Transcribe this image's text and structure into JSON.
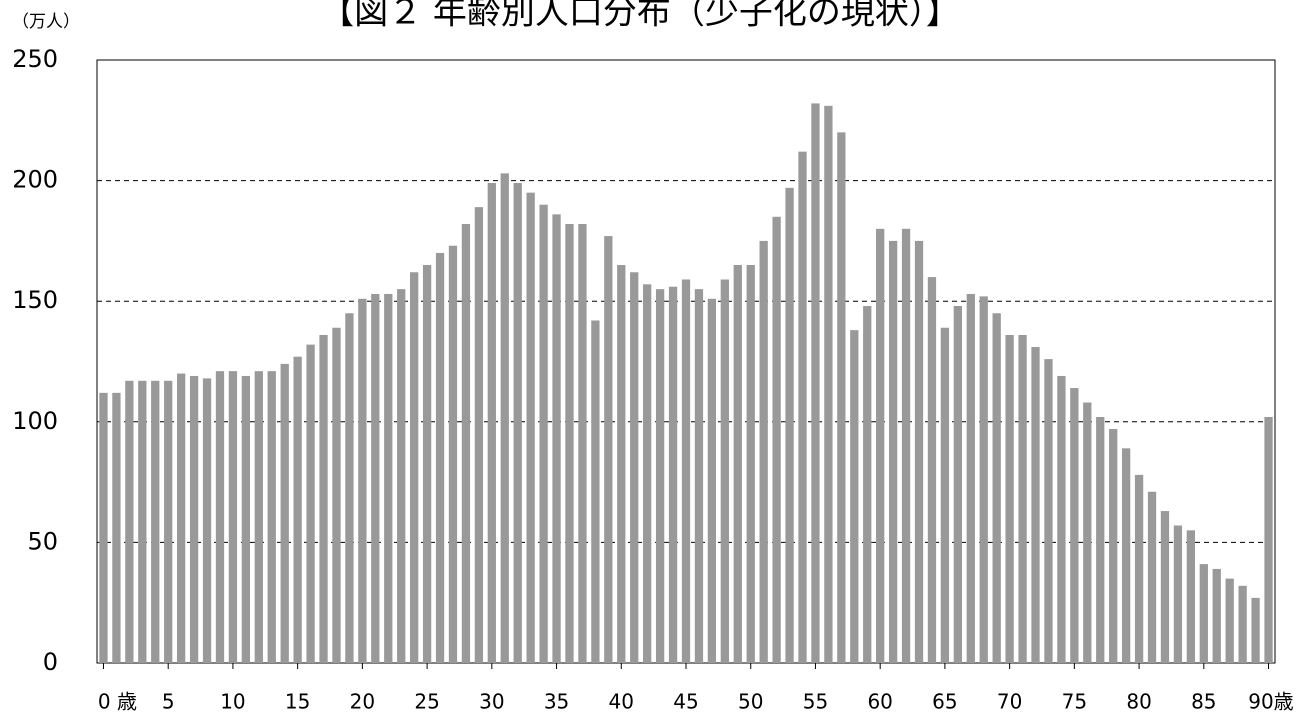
{
  "chart_data": {
    "type": "bar",
    "title": "【図２ 年齢別人口分布（少子化の現状）】",
    "y_label": "（万人）",
    "categories": [
      "0 歳",
      null,
      null,
      null,
      null,
      "5",
      null,
      null,
      null,
      null,
      "10",
      null,
      null,
      null,
      null,
      "15",
      null,
      null,
      null,
      null,
      "20",
      null,
      null,
      null,
      null,
      "25",
      null,
      null,
      null,
      null,
      "30",
      null,
      null,
      null,
      null,
      "35",
      null,
      null,
      null,
      null,
      "40",
      null,
      null,
      null,
      null,
      "45",
      null,
      null,
      null,
      null,
      "50",
      null,
      null,
      null,
      null,
      "55",
      null,
      null,
      null,
      null,
      "60",
      null,
      null,
      null,
      null,
      "65",
      null,
      null,
      null,
      null,
      "70",
      null,
      null,
      null,
      null,
      "75",
      null,
      null,
      null,
      null,
      "80",
      null,
      null,
      null,
      null,
      "85",
      null,
      null,
      null,
      null,
      "90歳 ~"
    ],
    "values": [
      112,
      112,
      117,
      117,
      117,
      117,
      120,
      119,
      118,
      121,
      121,
      119,
      121,
      121,
      124,
      127,
      132,
      136,
      139,
      145,
      151,
      153,
      153,
      155,
      162,
      165,
      170,
      173,
      182,
      189,
      199,
      203,
      199,
      195,
      190,
      186,
      182,
      182,
      142,
      177,
      165,
      162,
      157,
      155,
      156,
      159,
      155,
      151,
      159,
      165,
      165,
      175,
      185,
      197,
      212,
      232,
      231,
      220,
      138,
      148,
      180,
      175,
      180,
      175,
      160,
      139,
      148,
      153,
      152,
      145,
      136,
      136,
      131,
      126,
      119,
      114,
      108,
      102,
      97,
      89,
      78,
      71,
      63,
      57,
      55,
      41,
      39,
      35,
      32,
      27,
      102
    ],
    "color": "#999999",
    "ylim": [
      0,
      250
    ],
    "yticks": [
      0,
      50,
      100,
      150,
      200,
      250
    ],
    "grid": true
  }
}
